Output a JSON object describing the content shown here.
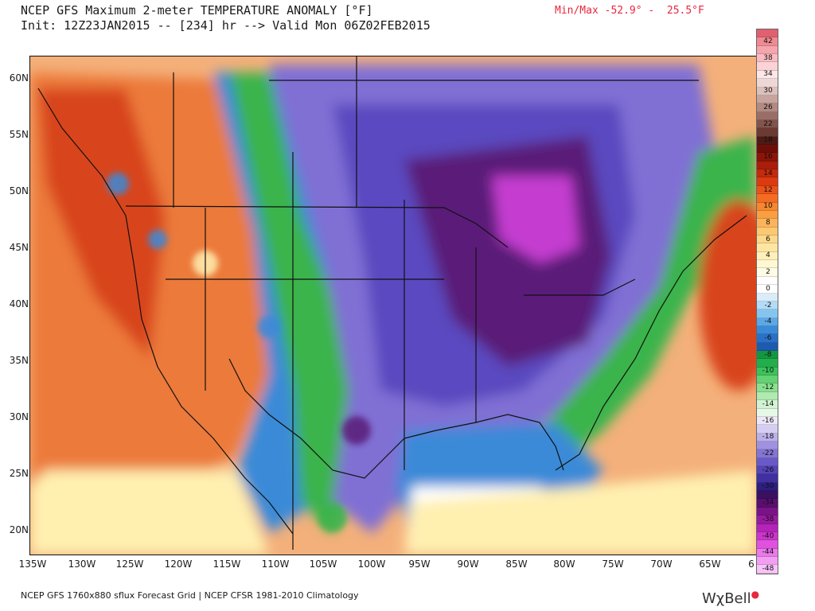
{
  "header": {
    "title": "NCEP GFS Maximum 2-meter TEMPERATURE ANOMALY [°F]",
    "init_line": "Init: 12Z23JAN2015 -- [234] hr --> Valid Mon 06Z02FEB2015",
    "minmax": "Min/Max -52.9° -  25.5°F"
  },
  "axes": {
    "lat_labels": [
      "60N",
      "55N",
      "50N",
      "45N",
      "40N",
      "35N",
      "30N",
      "25N",
      "20N"
    ],
    "lon_labels": [
      "135W",
      "130W",
      "125W",
      "120W",
      "115W",
      "110W",
      "105W",
      "100W",
      "95W",
      "90W",
      "85W",
      "80W",
      "75W",
      "70W",
      "65W",
      "6"
    ]
  },
  "legend": {
    "items": [
      {
        "label": "",
        "color": "#e06070"
      },
      {
        "label": "42",
        "color": "#f08a92"
      },
      {
        "label": "",
        "color": "#f5a5ad"
      },
      {
        "label": "38",
        "color": "#f8bcc2"
      },
      {
        "label": "",
        "color": "#fbd2d6"
      },
      {
        "label": "34",
        "color": "#fde6e8"
      },
      {
        "label": "",
        "color": "#eed8d6"
      },
      {
        "label": "30",
        "color": "#dcc0bc"
      },
      {
        "label": "",
        "color": "#c8a49e"
      },
      {
        "label": "26",
        "color": "#b28a82"
      },
      {
        "label": "",
        "color": "#9a6e66"
      },
      {
        "label": "22",
        "color": "#82544c"
      },
      {
        "label": "",
        "color": "#6b3a32"
      },
      {
        "label": "18",
        "color": "#4e1a14"
      },
      {
        "label": "",
        "color": "#6e0e08"
      },
      {
        "label": "16",
        "color": "#8c1408"
      },
      {
        "label": "",
        "color": "#a81e0a"
      },
      {
        "label": "14",
        "color": "#c42a0c"
      },
      {
        "label": "",
        "color": "#dc3a10"
      },
      {
        "label": "12",
        "color": "#ec5218"
      },
      {
        "label": "",
        "color": "#f46c22"
      },
      {
        "label": "10",
        "color": "#f8862e"
      },
      {
        "label": "",
        "color": "#fa9e42"
      },
      {
        "label": "8",
        "color": "#fcb45a"
      },
      {
        "label": "",
        "color": "#fcc872"
      },
      {
        "label": "6",
        "color": "#fdd88a"
      },
      {
        "label": "",
        "color": "#fee6a2"
      },
      {
        "label": "4",
        "color": "#fff0ba"
      },
      {
        "label": "",
        "color": "#fff8d2"
      },
      {
        "label": "2",
        "color": "#fffce6"
      },
      {
        "label": "",
        "color": "#ffffff"
      },
      {
        "label": "0",
        "color": "#ffffff"
      },
      {
        "label": "",
        "color": "#d8ecfa"
      },
      {
        "label": "-2",
        "color": "#b2dcf6"
      },
      {
        "label": "",
        "color": "#86c4f0"
      },
      {
        "label": "-4",
        "color": "#5aa8e6"
      },
      {
        "label": "",
        "color": "#3a8ad8"
      },
      {
        "label": "-6",
        "color": "#2a70c8"
      },
      {
        "label": "",
        "color": "#1e5aae"
      },
      {
        "label": "-8",
        "color": "#149640"
      },
      {
        "label": "",
        "color": "#22ae4a"
      },
      {
        "label": "-10",
        "color": "#3cc25a"
      },
      {
        "label": "",
        "color": "#62d272"
      },
      {
        "label": "-12",
        "color": "#8ae08e"
      },
      {
        "label": "",
        "color": "#b0eab0"
      },
      {
        "label": "-14",
        "color": "#d2f4d2"
      },
      {
        "label": "",
        "color": "#e8f8e8"
      },
      {
        "label": "-16",
        "color": "#ece6f8"
      },
      {
        "label": "",
        "color": "#d6cef2"
      },
      {
        "label": "-18",
        "color": "#bcb0ea"
      },
      {
        "label": "",
        "color": "#a092e0"
      },
      {
        "label": "-22",
        "color": "#8474d4"
      },
      {
        "label": "",
        "color": "#6a5ac8"
      },
      {
        "label": "-26",
        "color": "#5444b8"
      },
      {
        "label": "",
        "color": "#4030a0"
      },
      {
        "label": "-30",
        "color": "#2e1e80"
      },
      {
        "label": "",
        "color": "#3a1060"
      },
      {
        "label": "-34",
        "color": "#5a0e70"
      },
      {
        "label": "",
        "color": "#7a1288"
      },
      {
        "label": "-38",
        "color": "#981aa0"
      },
      {
        "label": "",
        "color": "#b424b8"
      },
      {
        "label": "-40",
        "color": "#cc34cc"
      },
      {
        "label": "",
        "color": "#de52de"
      },
      {
        "label": "-44",
        "color": "#ea78ea"
      },
      {
        "label": "",
        "color": "#f29ef2"
      },
      {
        "label": "-48",
        "color": "#f8c4f8"
      }
    ]
  },
  "footer": {
    "source": "NCEP GFS 1760x880 sflux Forecast Grid | NCEP CFSR 1981-2010 Climatology",
    "brand": "WχBell"
  },
  "map_colors": {
    "ocean_warm": "#f4b07a",
    "cold_core": "#5a1a78",
    "very_cold": "#c43cd0",
    "cold": "#5a48c0",
    "cool": "#8070d4",
    "green_band": "#3ab44c",
    "blue_band": "#3a8ad8",
    "warm_land": "#ec7a3a",
    "hot_land": "#d8441a",
    "light_yellow": "#fff0b0",
    "gulf_white": "#ffffff"
  }
}
